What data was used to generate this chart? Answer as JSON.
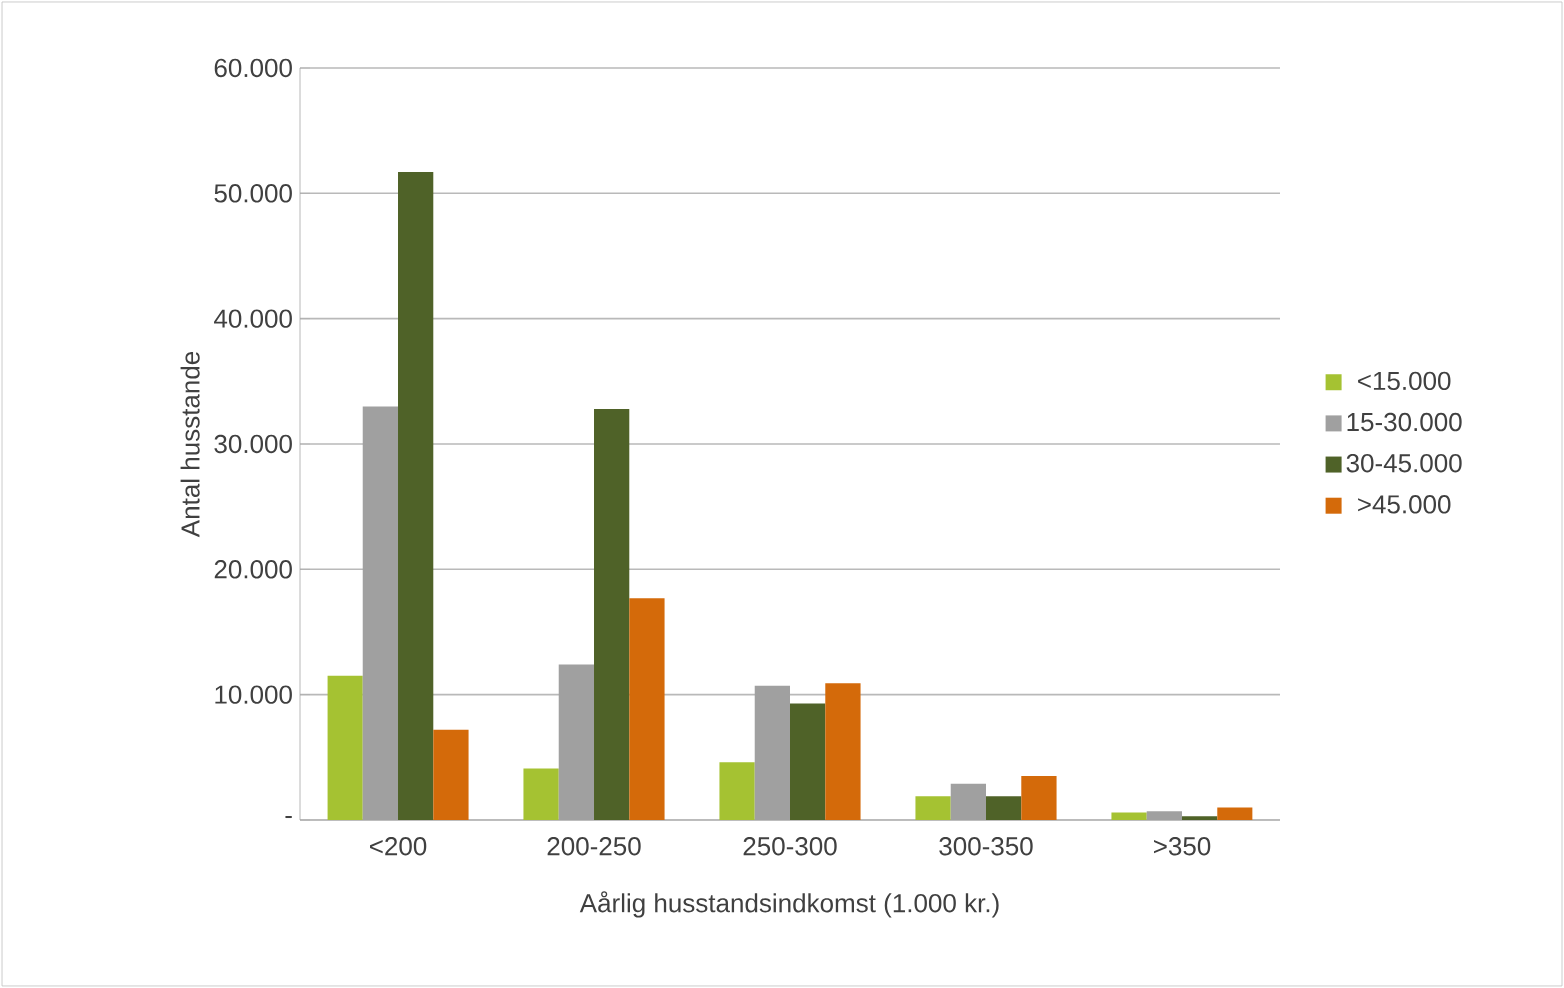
{
  "chart_data": {
    "type": "bar",
    "xlabel": "Aårlig husstandsindkomst (1.000 kr.)",
    "ylabel": "Antal husstande",
    "categories": [
      "<200",
      "200-250",
      "250-300",
      "300-350",
      ">350"
    ],
    "series": [
      {
        "name": "<15.000",
        "color": "#a5c232",
        "values": [
          11500,
          4100,
          4600,
          1900,
          600
        ]
      },
      {
        "name": "15-30.000",
        "color": "#a0a0a0",
        "values": [
          33000,
          12400,
          10700,
          2900,
          700
        ]
      },
      {
        "name": "30-45.000",
        "color": "#4f6228",
        "values": [
          51700,
          32800,
          9300,
          1900,
          300
        ]
      },
      {
        "name": ">45.000",
        "color": "#d46a0a",
        "values": [
          7200,
          17700,
          10900,
          3500,
          1000
        ]
      }
    ],
    "ylim": [
      0,
      60000
    ],
    "yticks": [
      {
        "value": 0,
        "label": "-"
      },
      {
        "value": 10000,
        "label": "10.000"
      },
      {
        "value": 20000,
        "label": "20.000"
      },
      {
        "value": 30000,
        "label": "30.000"
      },
      {
        "value": 40000,
        "label": "40.000"
      },
      {
        "value": 50000,
        "label": "50.000"
      },
      {
        "value": 60000,
        "label": "60.000"
      }
    ],
    "grid": "y",
    "legend": "right"
  }
}
